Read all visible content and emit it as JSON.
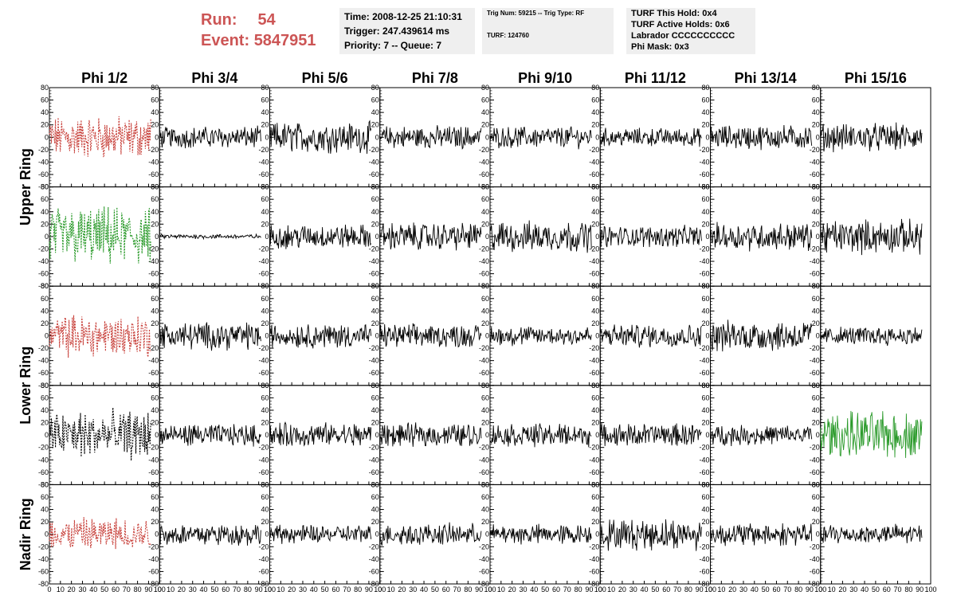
{
  "header": {
    "run_label": "Run:",
    "run_value": "54",
    "event_label": "Event:",
    "event_value": "5847951",
    "color": "#cc5555"
  },
  "info": {
    "time": "Time: 2008-12-25 21:10:31",
    "trigger": "Trigger: 247.439614 ms",
    "priority": "Priority: 7 -- Queue: 7",
    "trig_num": "Trig Num: 59215 -- Trig Type: RF",
    "turf_num": "TURF: 124760",
    "turf_this_hold": "TURF This Hold: 0x4",
    "turf_active_holds": "TURF Active Holds: 0x6",
    "labrador": "Labrador CCCCCCCCCC",
    "phi_mask": "Phi Mask: 0x3"
  },
  "chart_data": {
    "type": "line",
    "columns": [
      "Phi 1/2",
      "Phi 3/4",
      "Phi 5/6",
      "Phi 7/8",
      "Phi 9/10",
      "Phi 11/12",
      "Phi 13/14",
      "Phi 15/16"
    ],
    "ring_labels": [
      {
        "text": "Upper Ring",
        "rows": [
          0,
          1
        ]
      },
      {
        "text": "Lower Ring",
        "rows": [
          2,
          3
        ]
      },
      {
        "text": "Nadir Ring",
        "rows": [
          4
        ]
      }
    ],
    "xlim": [
      0,
      100
    ],
    "ylim": [
      -80,
      80
    ],
    "xticks": [
      "0",
      "10",
      "20",
      "30",
      "40",
      "50",
      "60",
      "70",
      "80",
      "90",
      "100"
    ],
    "yticks": [
      "80",
      "60",
      "40",
      "20",
      "0",
      "-20",
      "-40",
      "-60",
      "-80"
    ],
    "trace_end_x": 92,
    "colors": {
      "black": "#000000",
      "red": "#c8413b",
      "green": "#2a9a2a"
    },
    "panels": [
      [
        {
          "color": "red",
          "dashed": true,
          "amp": 28
        },
        {
          "color": "black",
          "dashed": false,
          "amp": 14
        },
        {
          "color": "black",
          "dashed": false,
          "amp": 20
        },
        {
          "color": "black",
          "dashed": false,
          "amp": 15
        },
        {
          "color": "black",
          "dashed": false,
          "amp": 14
        },
        {
          "color": "black",
          "dashed": false,
          "amp": 12
        },
        {
          "color": "black",
          "dashed": false,
          "amp": 16
        },
        {
          "color": "black",
          "dashed": false,
          "amp": 18
        }
      ],
      [
        {
          "color": "green",
          "dashed": true,
          "amp": 38
        },
        {
          "color": "black",
          "dashed": false,
          "amp": 3
        },
        {
          "color": "black",
          "dashed": false,
          "amp": 16
        },
        {
          "color": "black",
          "dashed": false,
          "amp": 18
        },
        {
          "color": "black",
          "dashed": false,
          "amp": 20
        },
        {
          "color": "black",
          "dashed": false,
          "amp": 14
        },
        {
          "color": "black",
          "dashed": false,
          "amp": 18
        },
        {
          "color": "black",
          "dashed": false,
          "amp": 22
        }
      ],
      [
        {
          "color": "red",
          "dashed": true,
          "amp": 28
        },
        {
          "color": "black",
          "dashed": false,
          "amp": 18
        },
        {
          "color": "black",
          "dashed": false,
          "amp": 16
        },
        {
          "color": "black",
          "dashed": false,
          "amp": 15
        },
        {
          "color": "black",
          "dashed": false,
          "amp": 13
        },
        {
          "color": "black",
          "dashed": false,
          "amp": 15
        },
        {
          "color": "black",
          "dashed": false,
          "amp": 20
        },
        {
          "color": "black",
          "dashed": false,
          "amp": 12
        }
      ],
      [
        {
          "color": "black",
          "dashed": true,
          "amp": 32
        },
        {
          "color": "black",
          "dashed": false,
          "amp": 14
        },
        {
          "color": "black",
          "dashed": false,
          "amp": 16
        },
        {
          "color": "black",
          "dashed": false,
          "amp": 15
        },
        {
          "color": "black",
          "dashed": false,
          "amp": 15
        },
        {
          "color": "black",
          "dashed": false,
          "amp": 15
        },
        {
          "color": "black",
          "dashed": false,
          "amp": 13
        },
        {
          "color": "green",
          "dashed": false,
          "amp": 30
        }
      ],
      [
        {
          "color": "red",
          "dashed": true,
          "amp": 22
        },
        {
          "color": "black",
          "dashed": false,
          "amp": 14
        },
        {
          "color": "black",
          "dashed": false,
          "amp": 12
        },
        {
          "color": "black",
          "dashed": false,
          "amp": 14
        },
        {
          "color": "black",
          "dashed": false,
          "amp": 13
        },
        {
          "color": "black",
          "dashed": false,
          "amp": 20
        },
        {
          "color": "black",
          "dashed": false,
          "amp": 15
        },
        {
          "color": "black",
          "dashed": false,
          "amp": 13
        }
      ]
    ]
  }
}
